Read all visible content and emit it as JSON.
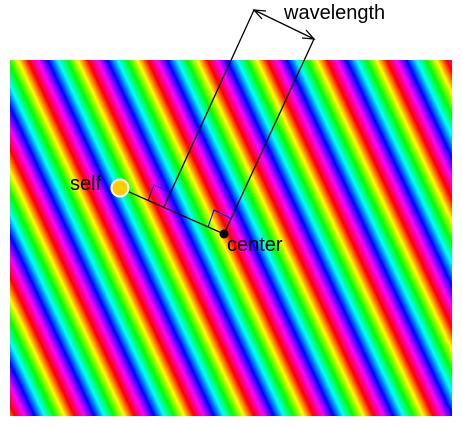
{
  "diagram": {
    "labels": {
      "wavelength": "wavelength",
      "self": "self",
      "center": "center"
    },
    "colors": {
      "spectrum": [
        "#ff0000",
        "#ffff00",
        "#00ff00",
        "#00ffff",
        "#0000ff",
        "#ff00ff",
        "#ff0000"
      ],
      "self_marker": "#ffcc00",
      "self_ring": "#ffffff",
      "center_marker": "#000000",
      "construction_line": "#000000",
      "right_angle_mark": "#0000ff"
    }
  }
}
